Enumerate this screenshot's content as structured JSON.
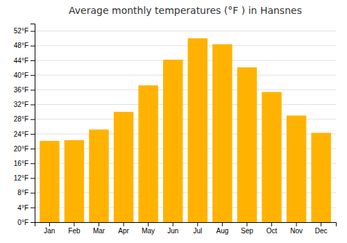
{
  "chart_data": {
    "type": "bar",
    "title": "Average monthly temperatures (°F ) in Hansnes",
    "categories": [
      "Jan",
      "Feb",
      "Mar",
      "Apr",
      "May",
      "Jun",
      "Jul",
      "Aug",
      "Sep",
      "Oct",
      "Nov",
      "Dec"
    ],
    "values": [
      22.1,
      22.3,
      25.2,
      30.0,
      37.2,
      44.2,
      50.0,
      48.4,
      42.1,
      35.4,
      29.0,
      24.3
    ],
    "color": "#FFB300",
    "ylim": [
      0,
      54
    ],
    "yticks": [
      {
        "value": 0,
        "label": "0°F"
      },
      {
        "value": 4,
        "label": "4°F"
      },
      {
        "value": 8,
        "label": "8°F"
      },
      {
        "value": 12,
        "label": "12°F"
      },
      {
        "value": 16,
        "label": "16°F"
      },
      {
        "value": 20,
        "label": "20°F"
      },
      {
        "value": 24,
        "label": "24°F"
      },
      {
        "value": 28,
        "label": "28°F"
      },
      {
        "value": 32,
        "label": "32°F"
      },
      {
        "value": 36,
        "label": "36°F"
      },
      {
        "value": 40,
        "label": "40°F"
      },
      {
        "value": 44,
        "label": "44°F"
      },
      {
        "value": 48,
        "label": "48°F"
      },
      {
        "value": 52,
        "label": "52°F"
      }
    ],
    "grid": true
  }
}
